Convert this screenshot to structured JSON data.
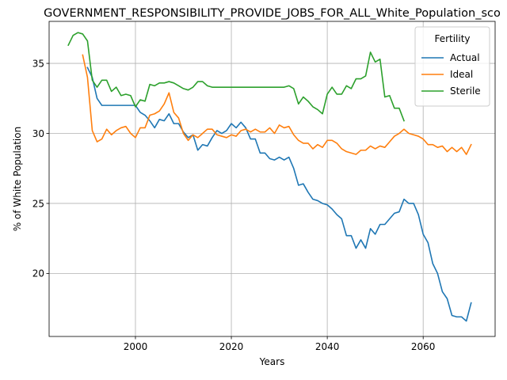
{
  "chart_data": {
    "type": "line",
    "title": "GOVERNMENT_RESPONSIBILITY_PROVIDE_JOBS_FOR_ALL_White_Population_sco",
    "xlabel": "Years",
    "ylabel": "% of White Population",
    "xlim": [
      1982,
      2075
    ],
    "ylim": [
      15.5,
      38.0
    ],
    "xticks": [
      2000,
      2020,
      2040,
      2060
    ],
    "yticks": [
      20,
      25,
      30,
      35
    ],
    "grid": true,
    "legend": {
      "title": "Fertility",
      "placement": "top-right"
    },
    "series": [
      {
        "name": "Actual",
        "color": "#1f77b4",
        "x": [
          1990,
          1991,
          1992,
          1993,
          1994,
          1995,
          1996,
          1997,
          1998,
          1999,
          2000,
          2001,
          2002,
          2003,
          2004,
          2005,
          2006,
          2007,
          2008,
          2009,
          2010,
          2011,
          2012,
          2013,
          2014,
          2015,
          2016,
          2017,
          2018,
          2019,
          2020,
          2021,
          2022,
          2023,
          2024,
          2025,
          2026,
          2027,
          2028,
          2029,
          2030,
          2031,
          2032,
          2033,
          2034,
          2035,
          2036,
          2037,
          2038,
          2039,
          2040,
          2041,
          2042,
          2043,
          2044,
          2045,
          2046,
          2047,
          2048,
          2049,
          2050,
          2051,
          2052,
          2053,
          2054,
          2055,
          2056,
          2057,
          2058,
          2059,
          2060,
          2061,
          2062,
          2063,
          2064,
          2065,
          2066,
          2067,
          2068,
          2069,
          2070
        ],
        "values": [
          34.7,
          34.0,
          32.5,
          32.0,
          32.0,
          32.0,
          32.0,
          32.0,
          32.0,
          32.0,
          32.0,
          31.5,
          31.3,
          30.9,
          30.4,
          31.0,
          30.9,
          31.4,
          30.7,
          30.7,
          30.1,
          29.7,
          29.9,
          28.8,
          29.2,
          29.1,
          29.7,
          30.2,
          30.0,
          30.2,
          30.7,
          30.4,
          30.8,
          30.4,
          29.6,
          29.6,
          28.6,
          28.6,
          28.2,
          28.1,
          28.3,
          28.1,
          28.3,
          27.5,
          26.3,
          26.4,
          25.8,
          25.3,
          25.2,
          25.0,
          24.9,
          24.6,
          24.2,
          23.9,
          22.7,
          22.7,
          21.8,
          22.4,
          21.8,
          23.2,
          22.8,
          23.5,
          23.5,
          23.9,
          24.3,
          24.4,
          25.3,
          25.0,
          25.0,
          24.2,
          22.8,
          22.2,
          20.7,
          20.0,
          18.7,
          18.2,
          17.0,
          16.9,
          16.9,
          16.6,
          17.9
        ]
      },
      {
        "name": "Ideal",
        "color": "#ff7f0e",
        "x": [
          1989,
          1990,
          1991,
          1992,
          1993,
          1994,
          1995,
          1996,
          1997,
          1998,
          1999,
          2000,
          2001,
          2002,
          2003,
          2004,
          2005,
          2006,
          2007,
          2008,
          2009,
          2010,
          2011,
          2012,
          2013,
          2014,
          2015,
          2016,
          2017,
          2018,
          2019,
          2020,
          2021,
          2022,
          2023,
          2024,
          2025,
          2026,
          2027,
          2028,
          2029,
          2030,
          2031,
          2032,
          2033,
          2034,
          2035,
          2036,
          2037,
          2038,
          2039,
          2040,
          2041,
          2042,
          2043,
          2044,
          2045,
          2046,
          2047,
          2048,
          2049,
          2050,
          2051,
          2052,
          2053,
          2054,
          2055,
          2056,
          2057,
          2058,
          2059,
          2060,
          2061,
          2062,
          2063,
          2064,
          2065,
          2066,
          2067,
          2068,
          2069,
          2070
        ],
        "values": [
          35.6,
          34.0,
          30.2,
          29.4,
          29.6,
          30.3,
          29.9,
          30.2,
          30.4,
          30.5,
          30.0,
          29.7,
          30.4,
          30.4,
          31.3,
          31.4,
          31.6,
          32.1,
          32.9,
          31.5,
          31.1,
          30.0,
          29.5,
          29.9,
          29.7,
          30.0,
          30.3,
          30.3,
          29.9,
          29.8,
          29.7,
          29.9,
          29.8,
          30.2,
          30.3,
          30.1,
          30.3,
          30.1,
          30.1,
          30.4,
          30.0,
          30.6,
          30.4,
          30.5,
          29.9,
          29.5,
          29.3,
          29.3,
          28.9,
          29.2,
          29.0,
          29.5,
          29.5,
          29.3,
          28.9,
          28.7,
          28.6,
          28.5,
          28.8,
          28.8,
          29.1,
          28.9,
          29.1,
          29.0,
          29.4,
          29.8,
          30.0,
          30.3,
          30.0,
          29.9,
          29.8,
          29.6,
          29.2,
          29.2,
          29.0,
          29.1,
          28.7,
          29.0,
          28.7,
          29.0,
          28.5,
          29.2
        ]
      },
      {
        "name": "Sterile",
        "color": "#2ca02c",
        "x": [
          1986,
          1987,
          1988,
          1989,
          1990,
          1991,
          1992,
          1993,
          1994,
          1995,
          1996,
          1997,
          1998,
          1999,
          2000,
          2001,
          2002,
          2003,
          2004,
          2005,
          2006,
          2007,
          2008,
          2009,
          2010,
          2011,
          2012,
          2013,
          2014,
          2015,
          2016,
          2017,
          2018,
          2019,
          2020,
          2021,
          2022,
          2023,
          2024,
          2025,
          2026,
          2027,
          2028,
          2029,
          2030,
          2031,
          2032,
          2033,
          2034,
          2035,
          2036,
          2037,
          2038,
          2039,
          2040,
          2041,
          2042,
          2043,
          2044,
          2045,
          2046,
          2047,
          2048,
          2049,
          2050,
          2051,
          2052,
          2053,
          2054,
          2055,
          2056
        ],
        "values": [
          36.3,
          37.0,
          37.2,
          37.1,
          36.6,
          33.8,
          33.3,
          33.8,
          33.8,
          33.0,
          33.3,
          32.7,
          32.8,
          32.7,
          31.9,
          32.4,
          32.3,
          33.5,
          33.4,
          33.6,
          33.6,
          33.7,
          33.6,
          33.4,
          33.2,
          33.1,
          33.3,
          33.7,
          33.7,
          33.4,
          33.3,
          33.3,
          33.3,
          33.3,
          33.3,
          33.3,
          33.3,
          33.3,
          33.3,
          33.3,
          33.3,
          33.3,
          33.3,
          33.3,
          33.3,
          33.3,
          33.4,
          33.2,
          32.1,
          32.6,
          32.3,
          31.9,
          31.7,
          31.4,
          32.8,
          33.3,
          32.8,
          32.8,
          33.4,
          33.2,
          33.9,
          33.9,
          34.1,
          35.8,
          35.1,
          35.3,
          32.6,
          32.7,
          31.8,
          31.8,
          30.9
        ]
      }
    ]
  }
}
